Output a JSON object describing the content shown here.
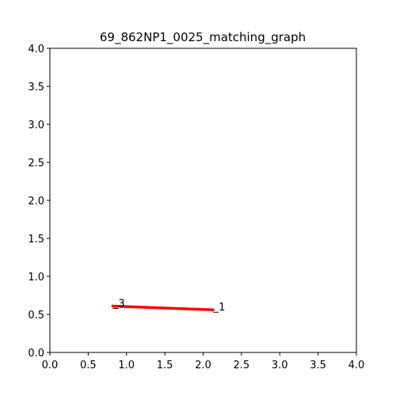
{
  "chart_data": {
    "type": "line",
    "title": "69_862NP1_0025_matching_graph",
    "xlabel": "",
    "ylabel": "",
    "xlim": [
      0,
      4
    ],
    "ylim": [
      0,
      4
    ],
    "xticks": [
      "0.0",
      "0.5",
      "1.0",
      "1.5",
      "2.0",
      "2.5",
      "3.0",
      "3.5",
      "4.0"
    ],
    "yticks": [
      "0.0",
      "0.5",
      "1.0",
      "1.5",
      "2.0",
      "2.5",
      "3.0",
      "3.5",
      "4.0"
    ],
    "grid": false,
    "series": [
      {
        "color": "#ff0000",
        "points": [
          {
            "x": 0.82,
            "y": 0.61,
            "label": "3"
          },
          {
            "x": 2.13,
            "y": 0.56,
            "label": "1"
          }
        ]
      }
    ]
  }
}
